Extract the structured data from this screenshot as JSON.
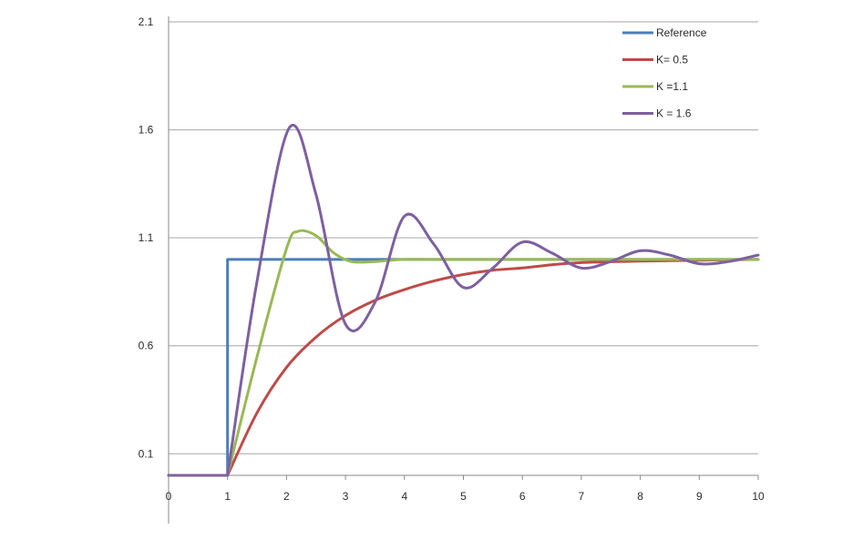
{
  "chart_data": {
    "type": "line",
    "title": "",
    "xlabel": "",
    "ylabel": "",
    "xlim": [
      0,
      10
    ],
    "ylim": [
      0,
      2.1
    ],
    "x_ticks": [
      "0",
      "1",
      "2",
      "3",
      "4",
      "5",
      "6",
      "7",
      "8",
      "9",
      "10"
    ],
    "y_ticks": [
      "0.1",
      "0.6",
      "1.1",
      "1.6",
      "2.1"
    ],
    "grid": "horizontal",
    "legend_position": "top-right",
    "series": [
      {
        "name": "Reference",
        "color": "#4a7ebb",
        "points": [
          [
            0,
            0
          ],
          [
            1,
            0
          ],
          [
            1,
            1
          ],
          [
            10,
            1
          ]
        ]
      },
      {
        "name": "K= 0.5",
        "color": "#be4b48",
        "points": [
          [
            0,
            0
          ],
          [
            1,
            0
          ],
          [
            1.5,
            0.29
          ],
          [
            2,
            0.5
          ],
          [
            2.5,
            0.64
          ],
          [
            3,
            0.74
          ],
          [
            3.5,
            0.81
          ],
          [
            4,
            0.86
          ],
          [
            4.5,
            0.9
          ],
          [
            5,
            0.93
          ],
          [
            5.5,
            0.95
          ],
          [
            6,
            0.96
          ],
          [
            6.5,
            0.975
          ],
          [
            7,
            0.985
          ],
          [
            8,
            0.992
          ],
          [
            9,
            0.996
          ],
          [
            10,
            1.0
          ]
        ]
      },
      {
        "name": "K =1.1",
        "color": "#98b954",
        "points": [
          [
            0,
            0
          ],
          [
            1,
            0
          ],
          [
            1.5,
            0.55
          ],
          [
            2,
            1.05
          ],
          [
            2.2,
            1.13
          ],
          [
            2.5,
            1.11
          ],
          [
            2.8,
            1.03
          ],
          [
            3.1,
            0.99
          ],
          [
            3.5,
            0.99
          ],
          [
            4,
            1.0
          ],
          [
            5,
            1.0
          ],
          [
            10,
            1.0
          ]
        ]
      },
      {
        "name": "K = 1.6",
        "color": "#7d60a0",
        "points": [
          [
            0,
            0
          ],
          [
            1,
            0
          ],
          [
            1.5,
            0.9
          ],
          [
            2.05,
            1.61
          ],
          [
            2.5,
            1.3
          ],
          [
            3,
            0.7
          ],
          [
            3.5,
            0.8
          ],
          [
            4,
            1.2
          ],
          [
            4.5,
            1.07
          ],
          [
            5,
            0.87
          ],
          [
            5.5,
            0.96
          ],
          [
            6,
            1.08
          ],
          [
            6.5,
            1.03
          ],
          [
            7,
            0.96
          ],
          [
            7.5,
            0.99
          ],
          [
            8,
            1.04
          ],
          [
            8.5,
            1.02
          ],
          [
            9,
            0.98
          ],
          [
            9.5,
            0.99
          ],
          [
            10,
            1.02
          ]
        ]
      }
    ]
  }
}
